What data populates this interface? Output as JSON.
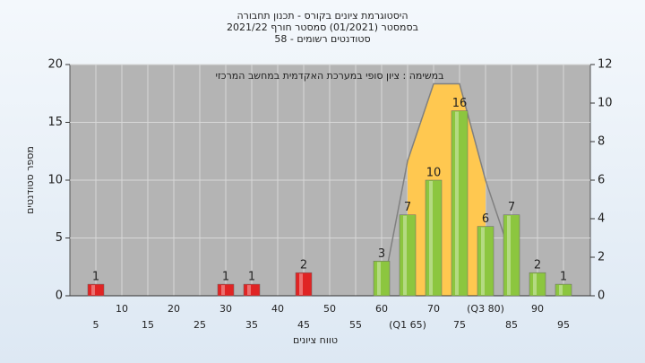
{
  "chart_data": {
    "type": "bar",
    "title": [
      "היסטוגרמת ציונים בקורס - תכנון תחבורה",
      "בסמסטר  (01/2021)  סמסטר חורף 2021/22",
      "סטודנטים רשומים - 58"
    ],
    "annotation": "במשימה : ציון סופי במערכת האקדמית במחשב המרכזי",
    "x_label": "טווח ציונים",
    "y_label": "מספר סטודנטים",
    "categories": [
      5,
      10,
      15,
      20,
      25,
      30,
      35,
      40,
      45,
      50,
      55,
      60,
      "(Q1 65)",
      70,
      75,
      "(Q3 80)",
      85,
      90,
      95
    ],
    "values": [
      1,
      null,
      null,
      null,
      null,
      1,
      1,
      null,
      2,
      null,
      null,
      3,
      7,
      10,
      16,
      6,
      7,
      2,
      1
    ],
    "colors": [
      "#e02424",
      null,
      null,
      null,
      null,
      "#e02424",
      "#e02424",
      null,
      "#e02424",
      null,
      null,
      "#8cc63f",
      "#8cc63f",
      "#8cc63f",
      "#8cc63f",
      "#8cc63f",
      "#8cc63f",
      "#8cc63f",
      "#8cc63f"
    ],
    "quartile_shape": {
      "axis": "y2",
      "color": "#ffc850",
      "line_color": "#808080",
      "values": [
        null,
        null,
        null,
        null,
        null,
        null,
        null,
        null,
        null,
        null,
        null,
        0,
        7,
        11,
        11,
        6,
        2,
        null,
        null
      ]
    },
    "ylim": [
      0,
      20
    ],
    "yticks": [
      0,
      5,
      10,
      15,
      20
    ],
    "y2lim": [
      0,
      12
    ],
    "y2ticks": [
      0,
      2,
      4,
      6,
      8,
      10,
      12
    ],
    "grid": true
  }
}
